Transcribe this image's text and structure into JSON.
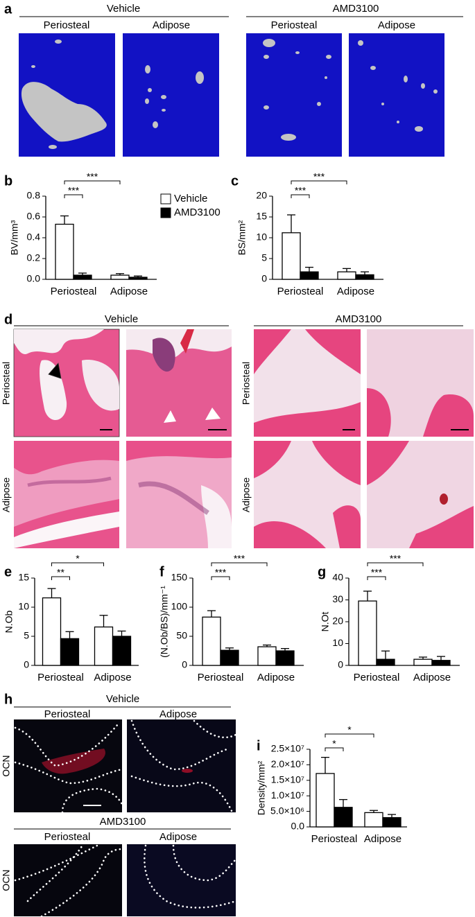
{
  "panel_a": {
    "letter": "a",
    "groups": [
      {
        "title": "Vehicle",
        "columns": [
          "Periosteal",
          "Adipose"
        ]
      },
      {
        "title": "AMD3100",
        "columns": [
          "Periosteal",
          "Adipose"
        ]
      }
    ]
  },
  "panel_d": {
    "letter": "d",
    "groups": [
      {
        "title": "Vehicle",
        "rows": [
          "Periosteal",
          "Adipose"
        ]
      },
      {
        "title": "AMD3100",
        "rows": [
          "Periosteal",
          "Adipose"
        ]
      }
    ]
  },
  "panel_h": {
    "letter": "h",
    "blocks": [
      {
        "title": "Vehicle",
        "columns": [
          "Periosteal",
          "Adipose"
        ],
        "row_label": "OCN"
      },
      {
        "title": "AMD3100",
        "columns": [
          "Periosteal",
          "Adipose"
        ],
        "row_label": "OCN"
      }
    ]
  },
  "chart_data": [
    {
      "type": "bar",
      "panel": "b",
      "y_label": "BV/mm³",
      "categories": [
        "Periosteal",
        "Adipose"
      ],
      "series": [
        {
          "name": "Vehicle",
          "color": "#ffffff",
          "values": [
            0.53,
            0.04
          ],
          "errors": [
            0.08,
            0.015
          ]
        },
        {
          "name": "AMD3100",
          "color": "#000000",
          "values": [
            0.04,
            0.02
          ],
          "errors": [
            0.02,
            0.012
          ]
        }
      ],
      "ylim": [
        0,
        0.8
      ],
      "yticks": [
        {
          "value": 0,
          "label": "0.0"
        },
        0.2,
        0.4,
        0.6,
        0.8
      ],
      "significance": [
        "***",
        "***"
      ]
    },
    {
      "type": "bar",
      "panel": "c",
      "y_label": "BS/mm²",
      "categories": [
        "Periosteal",
        "Adipose"
      ],
      "series": [
        {
          "color": "#ffffff",
          "values": [
            11.2,
            1.8
          ],
          "errors": [
            4.3,
            0.8
          ]
        },
        {
          "color": "#000000",
          "values": [
            1.8,
            1.1
          ],
          "errors": [
            1.1,
            0.7
          ]
        }
      ],
      "ylim": [
        0,
        20
      ],
      "yticks": [
        0,
        5,
        10,
        15,
        20
      ],
      "significance": [
        "***",
        "***"
      ]
    },
    {
      "type": "bar",
      "panel": "e",
      "y_label": "N.Ob",
      "categories": [
        "Periosteal",
        "Adipose"
      ],
      "series": [
        {
          "color": "#ffffff",
          "values": [
            11.6,
            6.6
          ],
          "errors": [
            1.6,
            2.0
          ]
        },
        {
          "color": "#000000",
          "values": [
            4.6,
            5.0
          ],
          "errors": [
            1.2,
            0.9
          ]
        }
      ],
      "ylim": [
        0,
        15
      ],
      "yticks": [
        0,
        5,
        10,
        15
      ],
      "significance": [
        "**",
        "*"
      ]
    },
    {
      "type": "bar",
      "panel": "f",
      "y_label": "(N.Ob/BS)/mm⁻¹",
      "categories": [
        "Periosteal",
        "Adipose"
      ],
      "series": [
        {
          "color": "#ffffff",
          "values": [
            83,
            32
          ],
          "errors": [
            11,
            3
          ]
        },
        {
          "color": "#000000",
          "values": [
            26,
            25
          ],
          "errors": [
            4,
            4
          ]
        }
      ],
      "ylim": [
        0,
        150
      ],
      "yticks": [
        0,
        50,
        100,
        150
      ],
      "significance": [
        "***",
        "***"
      ]
    },
    {
      "type": "bar",
      "panel": "g",
      "y_label": "N.Ot",
      "categories": [
        "Periosteal",
        "Adipose"
      ],
      "series": [
        {
          "color": "#ffffff",
          "values": [
            29.5,
            2.8
          ],
          "errors": [
            4.5,
            1.0
          ]
        },
        {
          "color": "#000000",
          "values": [
            2.8,
            2.3
          ],
          "errors": [
            3.8,
            1.8
          ]
        }
      ],
      "ylim": [
        0,
        40
      ],
      "yticks": [
        0,
        10,
        20,
        30,
        40
      ],
      "significance": [
        "***",
        "***"
      ]
    },
    {
      "type": "bar",
      "panel": "i",
      "y_label": "Density/mm²",
      "categories": [
        "Periosteal",
        "Adipose"
      ],
      "series": [
        {
          "color": "#ffffff",
          "values": [
            17200000,
            4600000
          ],
          "errors": [
            5200000,
            700000
          ]
        },
        {
          "color": "#000000",
          "values": [
            6300000,
            3000000
          ],
          "errors": [
            2500000,
            1000000
          ]
        }
      ],
      "ylim": [
        0,
        25000000
      ],
      "yticks": [
        {
          "value": 0,
          "label": "0.0"
        },
        {
          "value": 5000000,
          "label": "5.0×10⁶"
        },
        {
          "value": 10000000,
          "label": "1.0×10⁷"
        },
        {
          "value": 15000000,
          "label": "1.5×10⁷"
        },
        {
          "value": 20000000,
          "label": "2.0×10⁷"
        },
        {
          "value": 25000000,
          "label": "2.5×10⁷"
        }
      ],
      "significance": [
        "*",
        "*"
      ]
    }
  ]
}
